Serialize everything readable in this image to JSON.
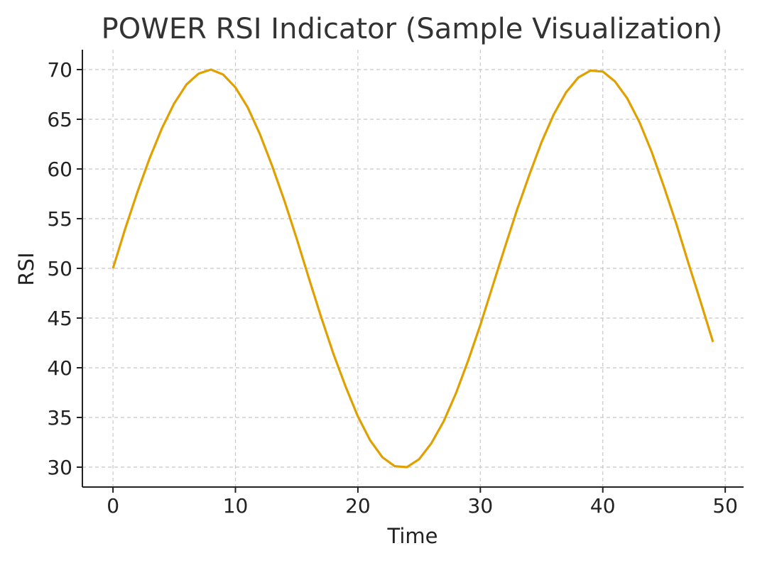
{
  "chart_data": {
    "type": "line",
    "title": "POWER RSI Indicator (Sample Visualization)",
    "xlabel": "Time",
    "ylabel": "RSI",
    "xlim": [
      -2.5,
      51.5
    ],
    "ylim": [
      28,
      72
    ],
    "xticks": [
      0,
      10,
      20,
      30,
      40,
      50
    ],
    "yticks": [
      30,
      35,
      40,
      45,
      50,
      55,
      60,
      65,
      70
    ],
    "grid": true,
    "series": [
      {
        "name": "RSI",
        "color": "#E0A000",
        "x": [
          0,
          1,
          2,
          3,
          4,
          5,
          6,
          7,
          8,
          9,
          10,
          11,
          12,
          13,
          14,
          15,
          16,
          17,
          18,
          19,
          20,
          21,
          22,
          23,
          24,
          25,
          26,
          27,
          28,
          29,
          30,
          31,
          32,
          33,
          34,
          35,
          36,
          37,
          38,
          39,
          40,
          41,
          42,
          43,
          44,
          45,
          46,
          47,
          48,
          49
        ],
        "y": [
          50.0,
          54.0,
          57.7,
          61.1,
          64.1,
          66.6,
          68.5,
          69.6,
          70.0,
          69.5,
          68.2,
          66.2,
          63.5,
          60.3,
          56.8,
          53.0,
          49.0,
          45.1,
          41.4,
          38.1,
          35.1,
          32.7,
          31.0,
          30.1,
          30.0,
          30.8,
          32.4,
          34.6,
          37.4,
          40.7,
          44.3,
          48.2,
          52.1,
          55.9,
          59.4,
          62.7,
          65.5,
          67.7,
          69.2,
          69.9,
          69.8,
          68.8,
          67.1,
          64.7,
          61.7,
          58.2,
          54.5,
          50.5,
          46.6,
          42.6
        ]
      }
    ]
  }
}
